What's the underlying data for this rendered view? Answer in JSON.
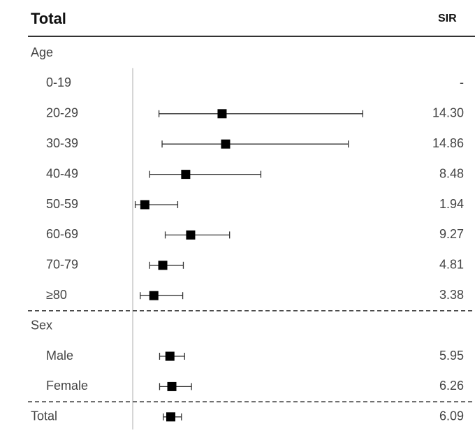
{
  "header": {
    "title": "Total",
    "sir_label": "SIR"
  },
  "chart_data": {
    "type": "forest",
    "value_column": "SIR",
    "rows": [
      {
        "label": "Age",
        "kind": "group"
      },
      {
        "label": "0-19",
        "kind": "item",
        "sir": null,
        "sir_text": "-"
      },
      {
        "label": "20-29",
        "kind": "item",
        "sir": 14.3,
        "sir_text": "14.30",
        "ci": [
          4.2,
          36.8
        ]
      },
      {
        "label": "30-39",
        "kind": "item",
        "sir": 14.86,
        "sir_text": "14.86",
        "ci": [
          4.7,
          34.5
        ]
      },
      {
        "label": "40-49",
        "kind": "item",
        "sir": 8.48,
        "sir_text": "8.48",
        "ci": [
          2.7,
          20.5
        ]
      },
      {
        "label": "50-59",
        "kind": "item",
        "sir": 1.94,
        "sir_text": "1.94",
        "ci": [
          0.4,
          7.2
        ]
      },
      {
        "label": "60-69",
        "kind": "item",
        "sir": 9.27,
        "sir_text": "9.27",
        "ci": [
          5.2,
          15.5
        ]
      },
      {
        "label": "70-79",
        "kind": "item",
        "sir": 4.81,
        "sir_text": "4.81",
        "ci": [
          2.7,
          8.1
        ]
      },
      {
        "label": "≥80",
        "kind": "item",
        "sir": 3.38,
        "sir_text": "3.38",
        "ci": [
          1.2,
          8.0
        ],
        "dashed_after": true
      },
      {
        "label": "Sex",
        "kind": "group"
      },
      {
        "label": "Male",
        "kind": "item",
        "sir": 5.95,
        "sir_text": "5.95",
        "ci": [
          4.3,
          8.3
        ]
      },
      {
        "label": "Female",
        "kind": "item",
        "sir": 6.26,
        "sir_text": "6.26",
        "ci": [
          4.3,
          9.4
        ],
        "dashed_after": true
      },
      {
        "label": "Total",
        "kind": "total",
        "sir": 6.09,
        "sir_text": "6.09",
        "ci": [
          4.9,
          7.8
        ]
      }
    ],
    "x_range": [
      0,
      38
    ],
    "reference_line_at": 0,
    "colors": {
      "marker": "#000000",
      "whisker": "#333333",
      "reference_line": "#bbbbbb",
      "separator": "#333333"
    }
  }
}
